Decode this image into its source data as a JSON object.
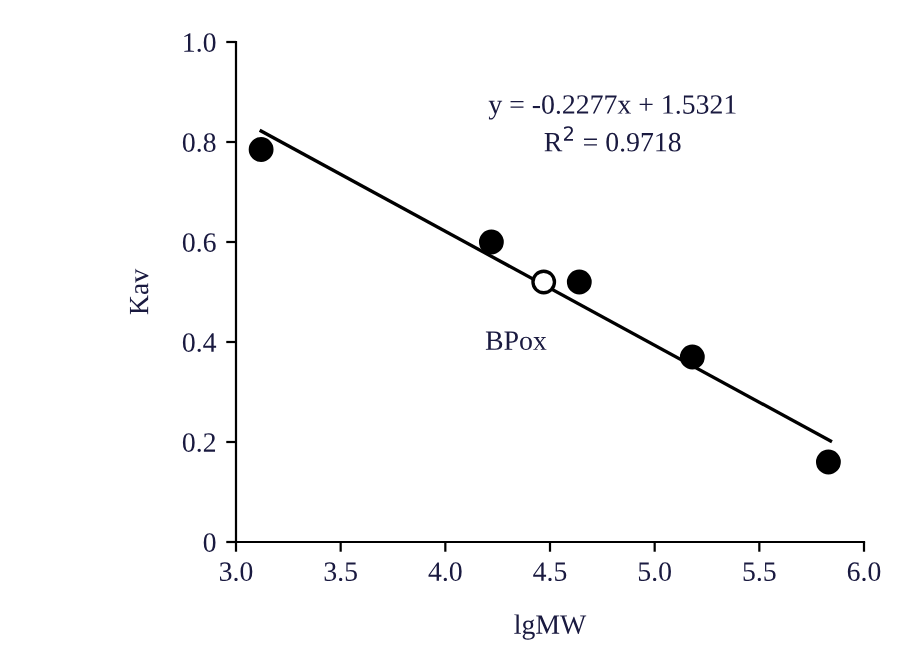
{
  "chart_data": {
    "type": "scatter",
    "xlabel": "lgMW",
    "ylabel": "Kav",
    "xlim": [
      3.0,
      6.0
    ],
    "ylim": [
      0,
      1.0
    ],
    "xticks": [
      {
        "value": 3.0,
        "label": "3.0"
      },
      3.5,
      {
        "value": 4.0,
        "label": "4.0"
      },
      4.5,
      {
        "value": 5.0,
        "label": "5.0"
      },
      5.5,
      {
        "value": 6.0,
        "label": "6.0"
      }
    ],
    "yticks": [
      0,
      0.2,
      0.4,
      0.6,
      0.8,
      {
        "value": 1.0,
        "label": "1.0"
      }
    ],
    "grid": false,
    "legend": false,
    "series": [
      {
        "color": "#000000",
        "marker": "circle",
        "x": [
          3.12,
          4.22,
          4.64,
          5.18,
          5.83
        ],
        "values": [
          0.785,
          0.6,
          0.52,
          0.37,
          0.16
        ]
      },
      {
        "color": "#ffffff",
        "marker": "circle",
        "x": [
          4.47
        ],
        "values": [
          0.52
        ]
      },
      {
        "type": "line",
        "color": "#000000",
        "marker": "none",
        "line_style": "solid",
        "x": [
          3.12,
          5.84
        ],
        "values": [
          0.822,
          0.202
        ]
      }
    ],
    "annotations": [
      "y = -0.2277x + 1.5321",
      "R$^{2}$ = 0.9718",
      {
        "text": "BPox",
        "x": 4.47,
        "y": 0.52
      }
    ]
  }
}
